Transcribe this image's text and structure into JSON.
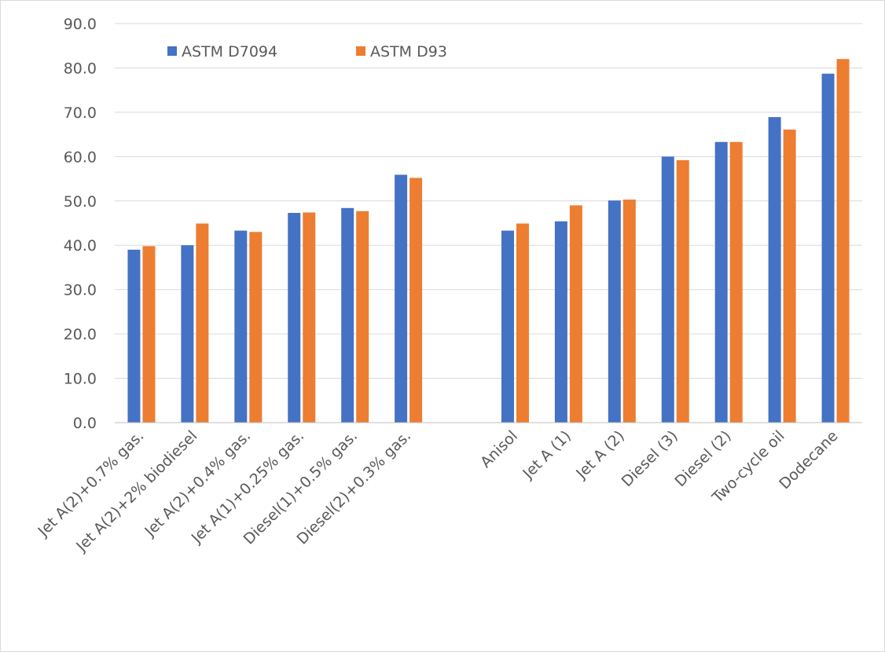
{
  "chart_data": {
    "type": "bar",
    "title": "",
    "xlabel": "",
    "ylabel": "",
    "ylim": [
      0,
      90
    ],
    "yticks": [
      "0.0",
      "10.0",
      "20.0",
      "30.0",
      "40.0",
      "50.0",
      "60.0",
      "70.0",
      "80.0",
      "90.0"
    ],
    "grid": true,
    "legend_position": "top-left",
    "categories": [
      "Jet A(2)+0.7% gas.",
      "Jet A(2)+2% biodiesel",
      "Jet A(2)+0.4% gas.",
      "Jet A(1)+0.25% gas.",
      "Diesel(1)+0.5% gas.",
      "Diesel(2)+0.3% gas.",
      "",
      "Anisol",
      "Jet A (1)",
      "Jet A (2)",
      "Diesel (3)",
      "Diesel (2)",
      "Two-cycle oil",
      "Dodecane"
    ],
    "series": [
      {
        "name": "ASTM D7094",
        "color": "#4472c4",
        "values": [
          39.0,
          40.0,
          43.3,
          47.3,
          48.4,
          55.9,
          null,
          43.3,
          45.4,
          50.1,
          60.0,
          63.3,
          68.9,
          78.7
        ]
      },
      {
        "name": "ASTM D93",
        "color": "#ed7d31",
        "values": [
          39.8,
          44.9,
          43.0,
          47.4,
          47.7,
          55.2,
          null,
          44.9,
          49.0,
          50.3,
          59.2,
          63.3,
          66.1,
          82.0
        ]
      }
    ]
  }
}
